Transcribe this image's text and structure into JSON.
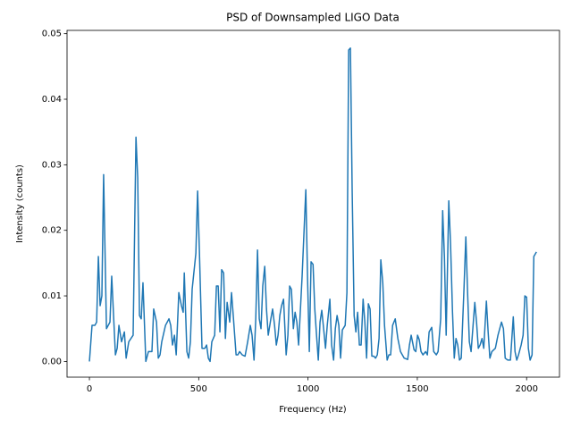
{
  "chart_data": {
    "type": "line",
    "title": "PSD of Downsampled LIGO Data",
    "xlabel": "Frequency (Hz)",
    "ylabel": "Intensity (counts)",
    "x": [
      0,
      12,
      25,
      33,
      41,
      49,
      57,
      65,
      78,
      94,
      102,
      119,
      127,
      135,
      147,
      160,
      168,
      180,
      200,
      213,
      221,
      229,
      237,
      245,
      258,
      270,
      286,
      294,
      307,
      315,
      323,
      331,
      348,
      364,
      372,
      380,
      389,
      397,
      409,
      421,
      429,
      434,
      446,
      454,
      462,
      470,
      487,
      495,
      503,
      515,
      528,
      536,
      544,
      552,
      560,
      573,
      581,
      589,
      597,
      605,
      614,
      622,
      630,
      642,
      650,
      658,
      671,
      679,
      687,
      699,
      712,
      724,
      736,
      744,
      753,
      761,
      769,
      777,
      785,
      793,
      802,
      810,
      818,
      830,
      838,
      847,
      855,
      863,
      871,
      879,
      888,
      900,
      908,
      916,
      924,
      933,
      941,
      949,
      957,
      973,
      990,
      998,
      1006,
      1014,
      1023,
      1031,
      1039,
      1047,
      1055,
      1063,
      1072,
      1080,
      1088,
      1100,
      1108,
      1117,
      1125,
      1133,
      1141,
      1149,
      1157,
      1170,
      1178,
      1186,
      1194,
      1202,
      1211,
      1219,
      1227,
      1235,
      1243,
      1252,
      1260,
      1268,
      1276,
      1284,
      1292,
      1301,
      1309,
      1317,
      1325,
      1333,
      1342,
      1350,
      1362,
      1370,
      1378,
      1387,
      1399,
      1411,
      1423,
      1440,
      1456,
      1464,
      1472,
      1485,
      1493,
      1501,
      1509,
      1517,
      1526,
      1538,
      1546,
      1554,
      1566,
      1575,
      1587,
      1595,
      1607,
      1616,
      1624,
      1632,
      1644,
      1652,
      1661,
      1669,
      1677,
      1685,
      1693,
      1701,
      1714,
      1722,
      1730,
      1738,
      1746,
      1763,
      1771,
      1779,
      1787,
      1796,
      1804,
      1816,
      1824,
      1832,
      1841,
      1857,
      1869,
      1885,
      1894,
      1902,
      1914,
      1926,
      1939,
      1947,
      1955,
      1963,
      1975,
      1984,
      1992,
      2000,
      2008,
      2016,
      2025,
      2033,
      2045
    ],
    "series": [
      {
        "color": "#1f77b4",
        "values": [
          0,
          0.0055,
          0.0055,
          0.006,
          0.016,
          0.0085,
          0.01,
          0.0285,
          0.005,
          0.006,
          0.013,
          0.001,
          0.002,
          0.0055,
          0.003,
          0.0045,
          0.0005,
          0.003,
          0.004,
          0.0342,
          0.028,
          0.007,
          0.0065,
          0.012,
          0.0,
          0.0015,
          0.0015,
          0.008,
          0.006,
          0.0005,
          0.001,
          0.003,
          0.0055,
          0.0065,
          0.0055,
          0.0025,
          0.004,
          0.001,
          0.0105,
          0.0085,
          0.0075,
          0.0135,
          0.0015,
          0.0005,
          0.003,
          0.011,
          0.0165,
          0.026,
          0.017,
          0.002,
          0.002,
          0.0025,
          0.0005,
          0.0,
          0.003,
          0.004,
          0.0115,
          0.0115,
          0.0045,
          0.014,
          0.0135,
          0.0035,
          0.009,
          0.006,
          0.0105,
          0.007,
          0.001,
          0.001,
          0.0015,
          0.001,
          0.0008,
          0.003,
          0.0055,
          0.004,
          0.0002,
          0.0065,
          0.017,
          0.0065,
          0.005,
          0.0115,
          0.0145,
          0.008,
          0.004,
          0.0065,
          0.008,
          0.0055,
          0.0025,
          0.004,
          0.007,
          0.0085,
          0.0095,
          0.001,
          0.004,
          0.0115,
          0.011,
          0.005,
          0.0075,
          0.006,
          0.0025,
          0.013,
          0.0262,
          0.0125,
          0.0015,
          0.0152,
          0.0148,
          0.008,
          0.004,
          0.0002,
          0.006,
          0.0078,
          0.0048,
          0.002,
          0.0055,
          0.0095,
          0.0025,
          0.0002,
          0.005,
          0.007,
          0.0055,
          0.0005,
          0.0048,
          0.0055,
          0.0105,
          0.0475,
          0.0478,
          0.026,
          0.007,
          0.0045,
          0.0075,
          0.0025,
          0.0025,
          0.0095,
          0.006,
          0.0005,
          0.0088,
          0.008,
          0.0008,
          0.0008,
          0.0005,
          0.001,
          0.0035,
          0.0155,
          0.012,
          0.0055,
          0.0002,
          0.001,
          0.001,
          0.0055,
          0.0065,
          0.0035,
          0.0015,
          0.0005,
          0.0003,
          0.0025,
          0.004,
          0.0018,
          0.0015,
          0.004,
          0.0033,
          0.0015,
          0.001,
          0.0015,
          0.001,
          0.0045,
          0.0052,
          0.0015,
          0.001,
          0.0015,
          0.0065,
          0.023,
          0.016,
          0.004,
          0.0245,
          0.018,
          0.0075,
          0.0005,
          0.0035,
          0.0025,
          0.0002,
          0.0005,
          0.0115,
          0.019,
          0.0105,
          0.003,
          0.0015,
          0.009,
          0.006,
          0.002,
          0.0025,
          0.0035,
          0.002,
          0.0092,
          0.0045,
          0.0005,
          0.0015,
          0.002,
          0.004,
          0.006,
          0.005,
          0.0005,
          0.0002,
          0.0002,
          0.0068,
          0.0015,
          0.0002,
          0.001,
          0.0025,
          0.004,
          0.01,
          0.0098,
          0.002,
          0.0002,
          0.001,
          0.016,
          0.0167
        ]
      }
    ],
    "xlim": [
      -102.4,
      2150.4
    ],
    "xticks": [
      0,
      500,
      1000,
      1500,
      2000
    ],
    "ylim": [
      -0.0024,
      0.0505
    ],
    "yticks": [
      {
        "value": 0,
        "label": "0.00"
      },
      {
        "value": 0.01,
        "label": "0.01"
      },
      {
        "value": 0.02,
        "label": "0.02"
      },
      {
        "value": 0.03,
        "label": "0.03"
      },
      {
        "value": 0.04,
        "label": "0.04"
      },
      {
        "value": 0.05,
        "label": "0.05"
      }
    ]
  }
}
